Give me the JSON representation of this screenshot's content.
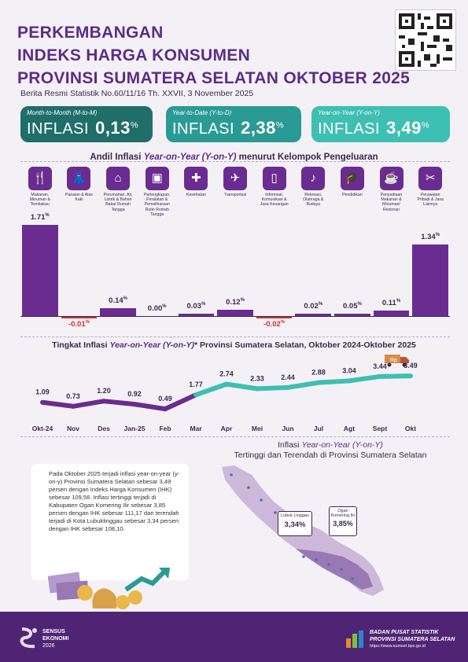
{
  "header": {
    "title_line1": "PERKEMBANGAN",
    "title_line2": "INDEKS HARGA KONSUMEN",
    "title_line3": "PROVINSI SUMATERA SELATAN OKTOBER 2025",
    "subtitle": "Berita Resmi Statistik No.60/11/16 Th. XXVII, 3 November 2025"
  },
  "boxes": [
    {
      "label": "Month-to-Month (M-to-M)",
      "word": "INFLASI",
      "value": "0,13",
      "unit": "%",
      "color": "#1f6e6a"
    },
    {
      "label": "Year-to-Date (Y-to-D)",
      "word": "INFLASI",
      "value": "2,38",
      "unit": "%",
      "color": "#2a9a94"
    },
    {
      "label": "Year-on-Year (Y-on-Y)",
      "word": "INFLASI",
      "value": "3,49",
      "unit": "%",
      "color": "#3dbfb1"
    }
  ],
  "andil": {
    "title_pre": "Andil Inflasi ",
    "title_em": "Year-on-Year (Y-on-Y)",
    "title_post": " menurut Kelompok Pengeluaran",
    "categories": [
      {
        "label": "Makanan, Minuman & Tembakau",
        "icon": "food-icon",
        "glyph": "🍴",
        "value": "1.71",
        "num": 1.71
      },
      {
        "label": "Pakaian & Alas Kaki",
        "icon": "clothing-icon",
        "glyph": "👗",
        "value": "-0.01",
        "num": -0.01
      },
      {
        "label": "Perumahan, Air, Listrik & Bahan Bakar Rumah Tangga",
        "icon": "house-icon",
        "glyph": "⌂",
        "value": "0.14",
        "num": 0.14
      },
      {
        "label": "Perlengkapan, Peralatan & Pemeliharaan Rutin Rumah Tangga",
        "icon": "appliance-icon",
        "glyph": "▣",
        "value": "0.00",
        "num": 0.0
      },
      {
        "label": "Kesehatan",
        "icon": "health-icon",
        "glyph": "✚",
        "value": "0.03",
        "num": 0.03
      },
      {
        "label": "Transportasi",
        "icon": "airplane-icon",
        "glyph": "✈",
        "value": "0.12",
        "num": 0.12
      },
      {
        "label": "Informasi, Komunikasi & Jasa Keuangan",
        "icon": "phone-icon",
        "glyph": "▯",
        "value": "-0.02",
        "num": -0.02
      },
      {
        "label": "Rekreasi, Olahraga & Budaya",
        "icon": "recreation-icon",
        "glyph": "♪",
        "value": "0.02",
        "num": 0.02
      },
      {
        "label": "Pendidikan",
        "icon": "graduation-icon",
        "glyph": "🎓",
        "value": "0.05",
        "num": 0.05
      },
      {
        "label": "Penyediaan Makanan & Minuman/ Restoran",
        "icon": "restaurant-icon",
        "glyph": "☕",
        "value": "0.11",
        "num": 0.11
      },
      {
        "label": "Perawatan Pribadi & Jasa Lainnya",
        "icon": "tools-icon",
        "glyph": "✂",
        "value": "1.34",
        "num": 1.34
      }
    ],
    "unit": "%"
  },
  "trend": {
    "title_pre": "Tingkat Inflasi ",
    "title_em": "Year-on-Year (Y-on-Y)",
    "title_post": "* Provinsi Sumatera Selatan, Oktober 2024-Oktober 2025"
  },
  "chart_data": {
    "type": "line",
    "x": [
      "Okt-24",
      "Nov",
      "Des",
      "Jan-25",
      "Feb",
      "Mar",
      "Apr",
      "Mei",
      "Jun",
      "Jul",
      "Agt",
      "Sept",
      "Okt"
    ],
    "series": [
      {
        "values": [
          1.09,
          0.73,
          1.2,
          0.92,
          0.49,
          1.77,
          2.74,
          2.33,
          2.44,
          2.88,
          3.04,
          3.44,
          3.49
        ]
      }
    ],
    "labels": [
      "1.09",
      "0.73",
      "1.20",
      "0.92",
      "0.49",
      "1.77",
      "2.74",
      "2.33",
      "2.44",
      "2.88",
      "3.04",
      "3.44",
      "3.49"
    ],
    "colors": {
      "early": "#6a2c91",
      "late": "#3dbfb1"
    }
  },
  "map": {
    "title_pre": "Inflasi ",
    "title_em": "Year-on-Year (Y-on-Y)",
    "title_line2": "Tertinggi dan Terendah di Provinsi Sumatera Selatan",
    "low_city": "Lubuk Linggau",
    "low_value": "3,34%",
    "high_city": "Ogan Komering Ilir",
    "high_value": "3,85%"
  },
  "paragraph": "Pada Oktober 2025 terjadi inflasi year-on-year (y-on-y) Provinsi Sumatera Selatan sebesar 3,49 persen dengan Indeks Harga Konsumen (IHK) sebesar 109,56. Inflasi tertinggi terjadi di Kabupaten Ogan Komering Ilir sebesar 3,85 persen dengan IHK sebesar 111,17 dan terendah terjadi di Kota Lubuklinggau sebesar 3,34 persen dengan IHK sebesar 108,10.",
  "footer": {
    "census_line1": "SENSUS",
    "census_line2": "EKONOMI",
    "census_line3": "2026",
    "bps_line1": "BADAN PUSAT STATISTIK",
    "bps_line2": "PROVINSI SUMATERA SELATAN",
    "bps_url": "https://www.sumsel.bps.go.id"
  }
}
